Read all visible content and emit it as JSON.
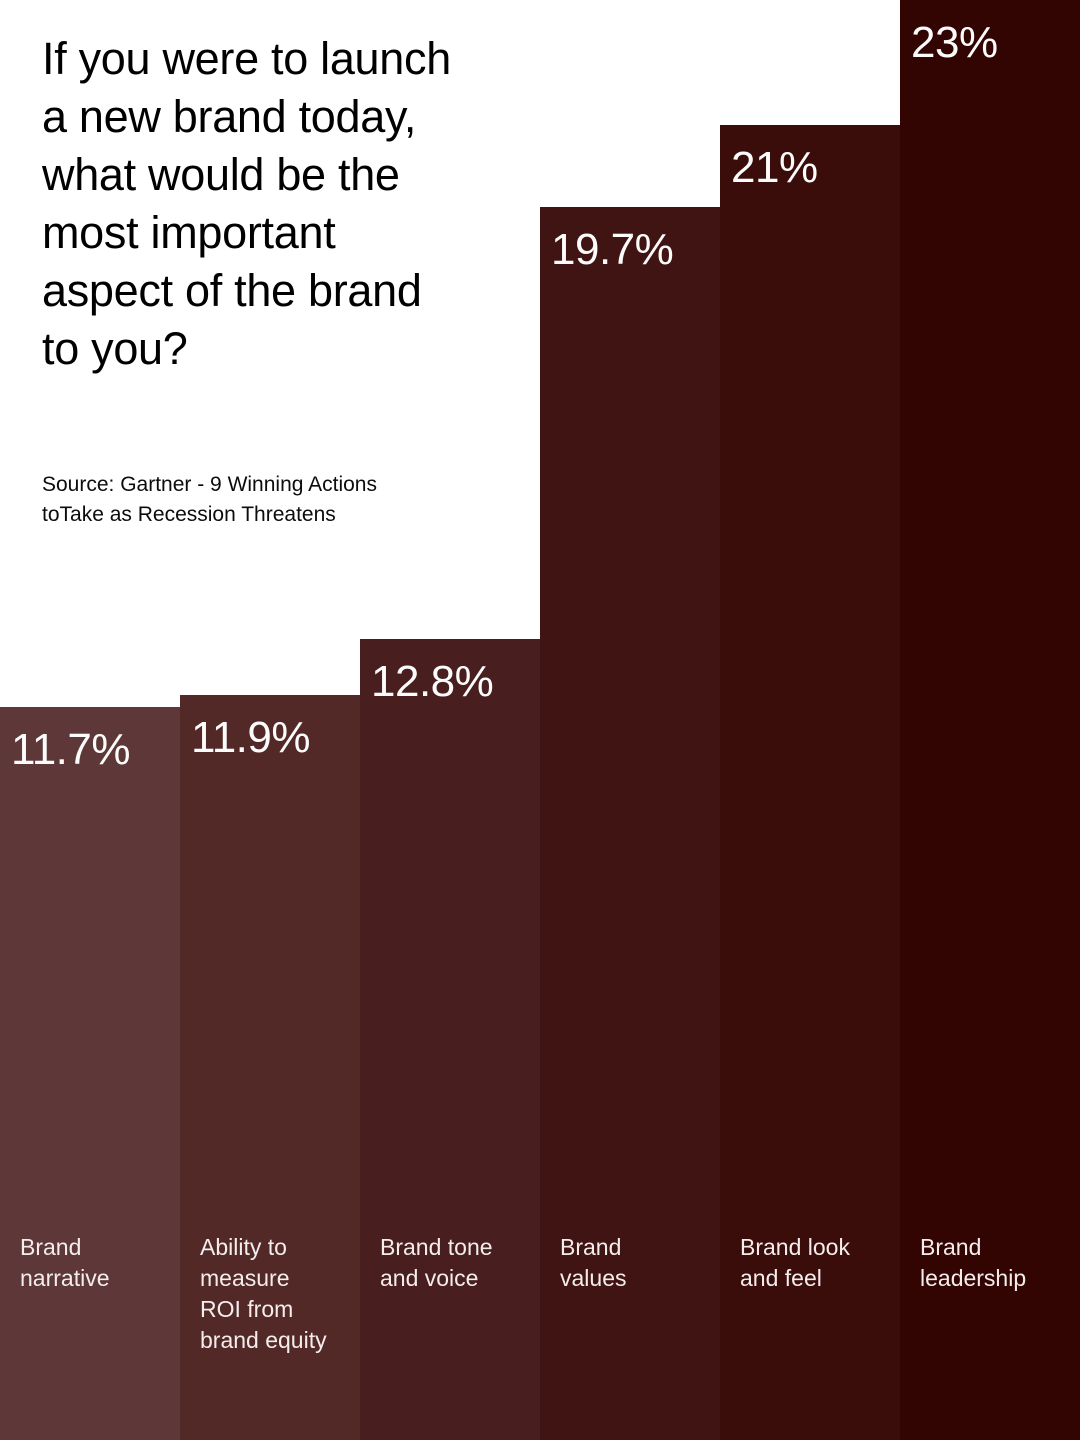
{
  "header": {
    "title": "If you were to launch a new brand today, what would be the most important aspect of the brand to you?",
    "title_lines": [
      "If you were to launch",
      "a new brand today,",
      "what would be the",
      "most important",
      "aspect of the brand",
      "to you?"
    ],
    "source": "Source: Gartner - 9 Winning Actions toTake as Recession Threatens",
    "source_lines": [
      "Source: Gartner - 9 Winning Actions",
      "toTake as Recession Threatens"
    ]
  },
  "chart_data": {
    "type": "bar",
    "orientation": "vertical",
    "title": "If you were to launch a new brand today, what would be the most important aspect of the brand to you?",
    "source": "Source: Gartner - 9 Winning Actions toTake as Recession Threatens",
    "categories": [
      "Brand narrative",
      "Ability to measure ROI from brand equity",
      "Brand tone and voice",
      "Brand values",
      "Brand look and feel",
      "Brand leadership"
    ],
    "category_lines": [
      [
        "Brand",
        "narrative"
      ],
      [
        "Ability to",
        "measure",
        "ROI from",
        "brand equity"
      ],
      [
        "Brand tone",
        "and voice"
      ],
      [
        "Brand",
        "values"
      ],
      [
        "Brand look",
        "and feel"
      ],
      [
        "Brand",
        "leadership"
      ]
    ],
    "values": [
      11.7,
      11.9,
      12.8,
      19.7,
      21,
      23
    ],
    "value_labels": [
      "11.7%",
      "11.9%",
      "12.8%",
      "19.7%",
      "21%",
      "23%"
    ],
    "value_axis_max": 23,
    "bar_colors": [
      "#5e3838",
      "#532928",
      "#481f1e",
      "#401412",
      "#3a0d0a",
      "#320502"
    ],
    "text_colors": {
      "value_label": "#fdfcfc",
      "category_label": "#f3eded"
    },
    "layout_hints": {
      "bars_flush": true,
      "baseline": "bottom-edge",
      "grid": "off",
      "value_label_position": "inside-top-left",
      "category_label_position": "inside-bottom-left",
      "tallest_bar_reaches_top": true
    }
  },
  "colors": {
    "background": "#ffffff",
    "title_text": "#000000"
  }
}
